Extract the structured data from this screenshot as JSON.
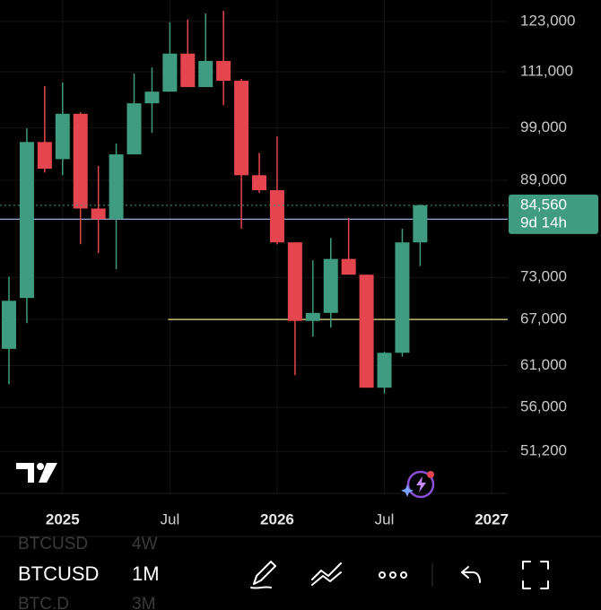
{
  "chart_data": {
    "type": "candlestick",
    "log_scale": true,
    "grid": true,
    "categories": [
      null,
      null,
      null,
      "2025",
      null,
      null,
      null,
      null,
      null,
      "Jul",
      null,
      null,
      null,
      null,
      null,
      "2026",
      null,
      null,
      null,
      null,
      null,
      "Jul",
      null,
      null,
      null,
      null,
      null,
      "2027"
    ],
    "open": [
      63100,
      70000,
      96200,
      92900,
      101900,
      84000,
      82200,
      93800,
      104100,
      106600,
      115200,
      107600,
      113500,
      109000,
      89900,
      87200,
      78400,
      66800,
      67900,
      75800,
      73400,
      58300,
      62600,
      78400,
      null,
      null,
      null,
      null
    ],
    "high": [
      73100,
      98900,
      107800,
      108600,
      102200,
      91600,
      95900,
      110600,
      112000,
      122800,
      123500,
      125000,
      125700,
      109400,
      94100,
      97300,
      78400,
      75600,
      79100,
      82400,
      73400,
      62700,
      80600,
      84700,
      null,
      null,
      null,
      null
    ],
    "low": [
      58700,
      66500,
      90400,
      89900,
      78100,
      76700,
      74200,
      93800,
      98000,
      106600,
      107600,
      107600,
      103700,
      80600,
      86700,
      78100,
      59800,
      64700,
      65900,
      73400,
      58300,
      57600,
      62100,
      74700,
      null,
      null,
      null,
      null
    ],
    "close": [
      69600,
      96200,
      91100,
      101900,
      84000,
      82200,
      93800,
      104100,
      106600,
      115200,
      107600,
      113500,
      109000,
      89900,
      87200,
      78400,
      66800,
      67900,
      75800,
      73400,
      58300,
      62600,
      78400,
      84560,
      null,
      null,
      null,
      null
    ],
    "up_color": "#3f9c80",
    "down_color": "#e5454f",
    "ylim": [
      47000,
      128500
    ],
    "yticks": [
      {
        "value": 123000,
        "label": "123,000"
      },
      {
        "value": 111000,
        "label": "111,000"
      },
      {
        "value": 99000,
        "label": "99,000"
      },
      {
        "value": 89000,
        "label": "89,000"
      },
      {
        "value": 73000,
        "label": "73,000"
      },
      {
        "value": 67000,
        "label": "67,000"
      },
      {
        "value": 61000,
        "label": "61,000"
      },
      {
        "value": 56000,
        "label": "56,000"
      },
      {
        "value": 51200,
        "label": "51,200"
      }
    ],
    "last_price": {
      "value": 84560,
      "label": "84,560"
    },
    "countdown": "9d 14h",
    "horizontal_lines": [
      {
        "value": 82200,
        "color": "#a8c0f0"
      },
      {
        "value": 67000,
        "color": "#ece48a"
      }
    ]
  },
  "toolbar": {
    "symbol": "BTCUSD",
    "interval": "1M",
    "prev_symbol": "BTCUSD",
    "prev_interval": "4W",
    "next_symbol": "BTC.D",
    "next_interval": "3M"
  }
}
